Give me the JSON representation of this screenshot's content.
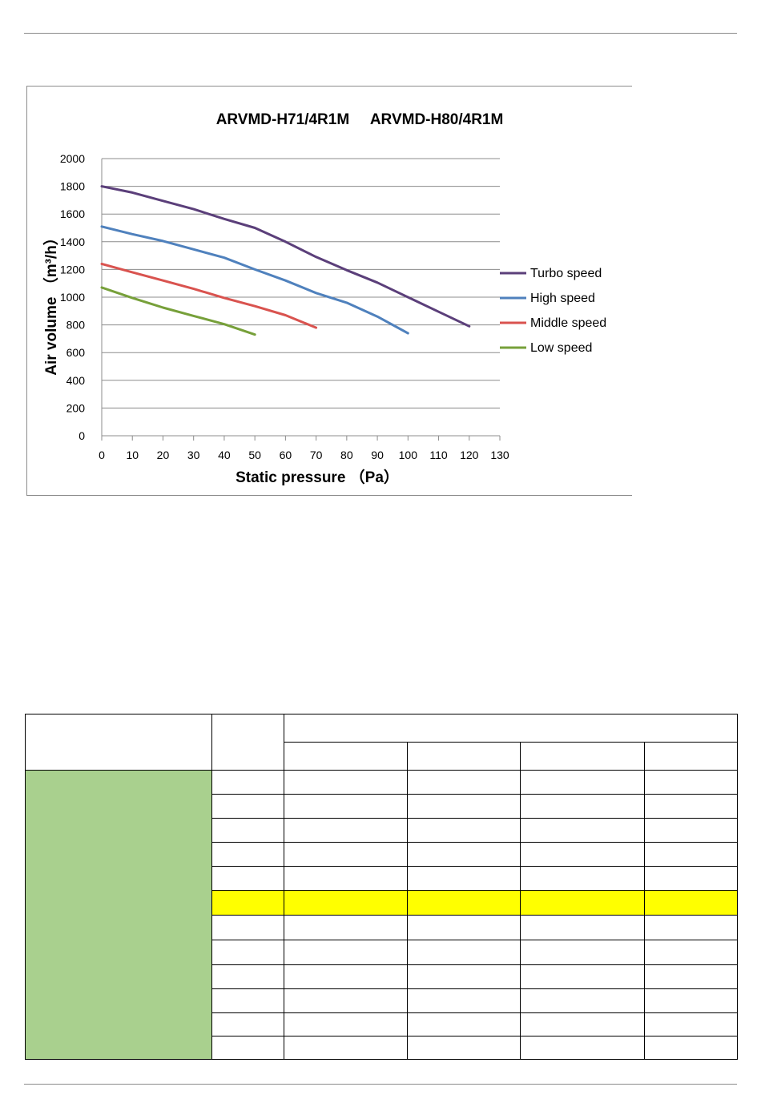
{
  "chart_data": {
    "type": "line",
    "title": "ARVMD-H71/4R1M     ARVMD-H80/4R1M",
    "xlabel": "Static pressure （Pa）",
    "ylabel": "Air volume （m³/h）",
    "xlim": [
      0,
      130
    ],
    "ylim": [
      0,
      2000
    ],
    "xticks": [
      "0",
      "10",
      "20",
      "30",
      "40",
      "50",
      "60",
      "70",
      "80",
      "90",
      "100",
      "110",
      "120",
      "130"
    ],
    "yticks": [
      "0",
      "200",
      "400",
      "600",
      "800",
      "1000",
      "1200",
      "1400",
      "1600",
      "1800",
      "2000"
    ],
    "grid": true,
    "legend_position": "right",
    "series": [
      {
        "name": "Turbo speed",
        "color": "#5b3f7a",
        "x": [
          0,
          10,
          20,
          30,
          40,
          50,
          60,
          70,
          80,
          90,
          100,
          110,
          120
        ],
        "y": [
          1800,
          1755,
          1695,
          1635,
          1565,
          1500,
          1400,
          1290,
          1195,
          1105,
          1000,
          895,
          790
        ]
      },
      {
        "name": "High speed",
        "color": "#4f81bd",
        "x": [
          0,
          10,
          20,
          30,
          40,
          50,
          60,
          70,
          80,
          90,
          100
        ],
        "y": [
          1510,
          1455,
          1405,
          1345,
          1285,
          1200,
          1120,
          1030,
          960,
          860,
          740
        ]
      },
      {
        "name": "Middle speed",
        "color": "#d9534f",
        "x": [
          0,
          10,
          20,
          30,
          40,
          50,
          60,
          70
        ],
        "y": [
          1240,
          1180,
          1120,
          1060,
          995,
          935,
          870,
          780
        ]
      },
      {
        "name": "Low speed",
        "color": "#77a03a",
        "x": [
          0,
          10,
          20,
          30,
          40,
          50
        ],
        "y": [
          1070,
          995,
          925,
          865,
          805,
          730
        ]
      }
    ]
  }
}
